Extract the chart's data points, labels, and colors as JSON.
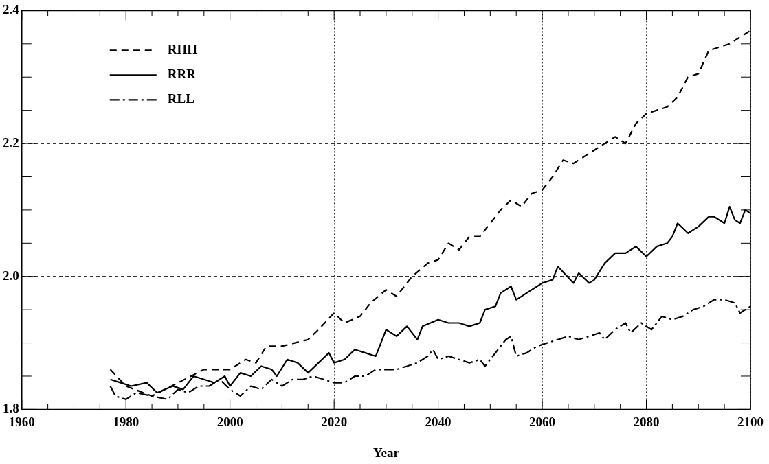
{
  "chart_data": {
    "type": "line",
    "xlabel": "Year",
    "legend": "top left",
    "grid": true,
    "marker": "none",
    "xlim": [
      1960,
      2100
    ],
    "xticks": [
      1960,
      {
        "value": 1965,
        "label": null
      },
      {
        "value": 1970,
        "label": null
      },
      {
        "value": 1975,
        "label": null
      },
      1980,
      {
        "value": 1985,
        "label": null
      },
      {
        "value": 1990,
        "label": null
      },
      {
        "value": 1995,
        "label": null
      },
      2000,
      {
        "value": 2005,
        "label": null
      },
      {
        "value": 2010,
        "label": null
      },
      {
        "value": 2015,
        "label": null
      },
      2020,
      {
        "value": 2025,
        "label": null
      },
      {
        "value": 2030,
        "label": null
      },
      {
        "value": 2035,
        "label": null
      },
      2040,
      {
        "value": 2045,
        "label": null
      },
      {
        "value": 2050,
        "label": null
      },
      {
        "value": 2055,
        "label": null
      },
      2060,
      {
        "value": 2065,
        "label": null
      },
      {
        "value": 2070,
        "label": null
      },
      {
        "value": 2075,
        "label": null
      },
      2080,
      {
        "value": 2085,
        "label": null
      },
      {
        "value": 2090,
        "label": null
      },
      {
        "value": 2095,
        "label": null
      },
      2100
    ],
    "ylim": [
      1.8,
      2.4
    ],
    "yticks": [
      1.8,
      {
        "value": 1.85,
        "label": null
      },
      {
        "value": 1.9,
        "label": null
      },
      {
        "value": 1.95,
        "label": null
      },
      {
        "value": 2,
        "label": "2.0"
      },
      {
        "value": 2.05,
        "label": null
      },
      {
        "value": 2.1,
        "label": null
      },
      {
        "value": 2.15,
        "label": null
      },
      2.2,
      {
        "value": 2.25,
        "label": null
      },
      {
        "value": 2.3,
        "label": null
      },
      {
        "value": 2.35,
        "label": null
      },
      2.4
    ],
    "series": [
      {
        "name": "RHH",
        "color": "#000000",
        "line_style": "dashed",
        "x": [
          1977,
          1980,
          1985,
          1990,
          1995,
          2000,
          2003,
          2005,
          2007,
          2010,
          2015,
          2017,
          2020,
          2022,
          2025,
          2027,
          2030,
          2032,
          2035,
          2038,
          2040,
          2042,
          2044,
          2046,
          2048,
          2050,
          2052,
          2054,
          2056,
          2058,
          2060,
          2062,
          2064,
          2066,
          2068,
          2070,
          2072,
          2074,
          2076,
          2078,
          2080,
          2082,
          2084,
          2086,
          2088,
          2090,
          2092,
          2094,
          2096,
          2098,
          2100
        ],
        "values": [
          1.86,
          1.835,
          1.82,
          1.84,
          1.86,
          1.86,
          1.875,
          1.87,
          1.895,
          1.895,
          1.905,
          1.92,
          1.945,
          1.93,
          1.94,
          1.96,
          1.98,
          1.97,
          2.0,
          2.02,
          2.025,
          2.05,
          2.04,
          2.06,
          2.06,
          2.08,
          2.1,
          2.115,
          2.105,
          2.125,
          2.13,
          2.15,
          2.175,
          2.17,
          2.18,
          2.19,
          2.2,
          2.21,
          2.2,
          2.23,
          2.245,
          2.25,
          2.255,
          2.27,
          2.3,
          2.305,
          2.34,
          2.345,
          2.35,
          2.36,
          2.37
        ]
      },
      {
        "name": "RRR",
        "color": "#000000",
        "line_style": "solid",
        "x": [
          1977,
          1979,
          1981,
          1984,
          1986,
          1989,
          1991,
          1993,
          1995,
          1997,
          1999,
          2000,
          2002,
          2004,
          2006,
          2008,
          2009,
          2011,
          2013,
          2015,
          2017,
          2019,
          2020,
          2022,
          2024,
          2026,
          2028,
          2030,
          2032,
          2034,
          2036,
          2037,
          2040,
          2042,
          2044,
          2046,
          2048,
          2049,
          2051,
          2052,
          2054,
          2055,
          2057,
          2059,
          2060,
          2062,
          2063,
          2066,
          2067,
          2069,
          2070,
          2072,
          2074,
          2076,
          2078,
          2080,
          2082,
          2084,
          2085,
          2086,
          2088,
          2090,
          2092,
          2093,
          2095,
          2096,
          2097,
          2098,
          2099,
          2100
        ],
        "values": [
          1.845,
          1.84,
          1.835,
          1.84,
          1.825,
          1.835,
          1.83,
          1.85,
          1.845,
          1.84,
          1.85,
          1.835,
          1.855,
          1.85,
          1.865,
          1.86,
          1.85,
          1.875,
          1.87,
          1.855,
          1.87,
          1.885,
          1.87,
          1.875,
          1.89,
          1.885,
          1.88,
          1.92,
          1.91,
          1.925,
          1.905,
          1.925,
          1.935,
          1.93,
          1.93,
          1.925,
          1.93,
          1.95,
          1.955,
          1.975,
          1.985,
          1.965,
          1.975,
          1.985,
          1.99,
          1.995,
          2.015,
          1.99,
          2.005,
          1.99,
          1.995,
          2.02,
          2.035,
          2.035,
          2.045,
          2.03,
          2.045,
          2.05,
          2.06,
          2.08,
          2.065,
          2.075,
          2.09,
          2.09,
          2.08,
          2.105,
          2.085,
          2.08,
          2.1,
          2.095
        ]
      },
      {
        "name": "RLL",
        "color": "#000000",
        "line_style": "dashdot",
        "x": [
          1977,
          1978,
          1980,
          1982,
          1985,
          1988,
          1990,
          1992,
          1994,
          1996,
          1998,
          2000,
          2002,
          2004,
          2006,
          2008,
          2010,
          2012,
          2014,
          2016,
          2018,
          2020,
          2022,
          2024,
          2026,
          2028,
          2030,
          2032,
          2034,
          2036,
          2038,
          2039,
          2040,
          2042,
          2044,
          2046,
          2048,
          2049,
          2051,
          2053,
          2054,
          2055,
          2057,
          2059,
          2061,
          2063,
          2065,
          2067,
          2069,
          2071,
          2072,
          2074,
          2076,
          2077,
          2079,
          2081,
          2083,
          2085,
          2087,
          2089,
          2091,
          2093,
          2095,
          2097,
          2098,
          2100
        ],
        "values": [
          1.835,
          1.82,
          1.815,
          1.825,
          1.82,
          1.815,
          1.83,
          1.825,
          1.835,
          1.835,
          1.845,
          1.83,
          1.82,
          1.835,
          1.83,
          1.845,
          1.835,
          1.845,
          1.845,
          1.85,
          1.845,
          1.84,
          1.84,
          1.85,
          1.85,
          1.86,
          1.86,
          1.86,
          1.865,
          1.87,
          1.88,
          1.89,
          1.875,
          1.88,
          1.875,
          1.87,
          1.875,
          1.865,
          1.885,
          1.905,
          1.91,
          1.88,
          1.885,
          1.895,
          1.9,
          1.905,
          1.91,
          1.905,
          1.91,
          1.915,
          1.905,
          1.92,
          1.93,
          1.915,
          1.93,
          1.92,
          1.94,
          1.935,
          1.94,
          1.95,
          1.955,
          1.965,
          1.965,
          1.96,
          1.945,
          1.955
        ]
      }
    ]
  }
}
